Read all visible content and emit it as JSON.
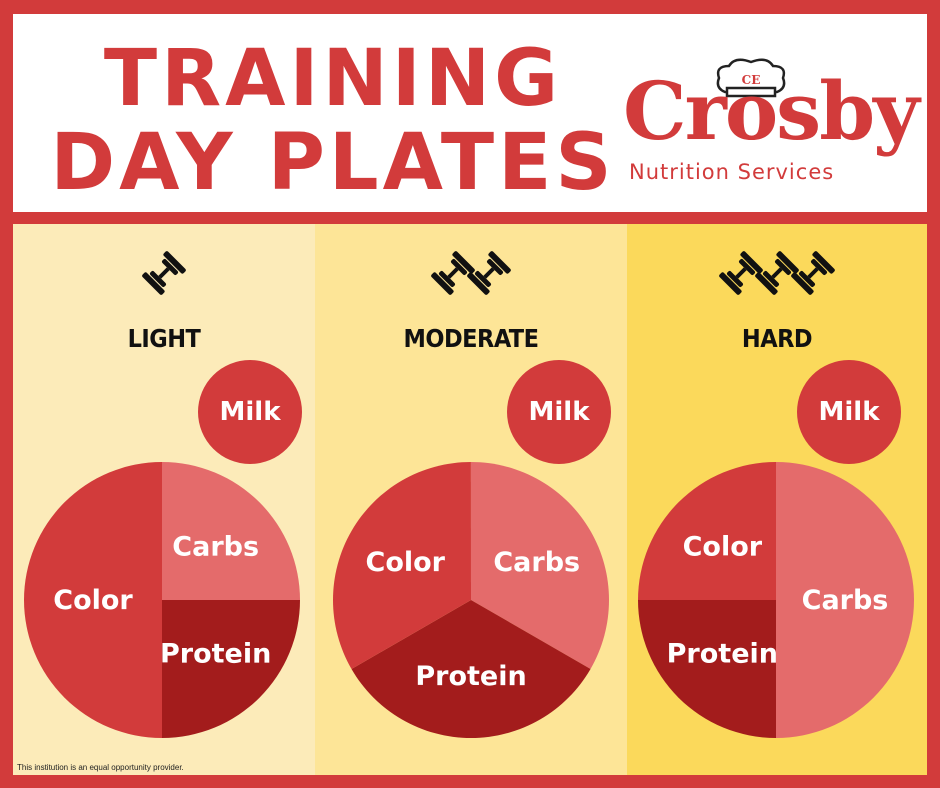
{
  "header": {
    "title_line1": "TRAINING",
    "title_line2": "DAY PLATES",
    "logo_word": "Crosby",
    "logo_sub": "Nutrition Services",
    "logo_icon": "chef-hat-icon"
  },
  "colors": {
    "brand_red": "#d23b3b",
    "light_red": "#e46b6b",
    "dark_red": "#a31c1c",
    "panel_light": "#fcebb9",
    "panel_moderate": "#fde597",
    "panel_hard": "#fbd95b"
  },
  "plates": [
    {
      "level": "LIGHT",
      "dumbbell_count": 1,
      "milk": "Milk",
      "slices": [
        {
          "label": "Color",
          "fraction": 0.5
        },
        {
          "label": "Carbs",
          "fraction": 0.25
        },
        {
          "label": "Protein",
          "fraction": 0.25
        }
      ]
    },
    {
      "level": "MODERATE",
      "dumbbell_count": 2,
      "milk": "Milk",
      "slices": [
        {
          "label": "Color",
          "fraction": 0.3333
        },
        {
          "label": "Carbs",
          "fraction": 0.3333
        },
        {
          "label": "Protein",
          "fraction": 0.3333
        }
      ]
    },
    {
      "level": "HARD",
      "dumbbell_count": 3,
      "milk": "Milk",
      "slices": [
        {
          "label": "Color",
          "fraction": 0.25
        },
        {
          "label": "Carbs",
          "fraction": 0.5
        },
        {
          "label": "Protein",
          "fraction": 0.25
        }
      ]
    }
  ],
  "footer": "This institution is an equal opportunity provider."
}
